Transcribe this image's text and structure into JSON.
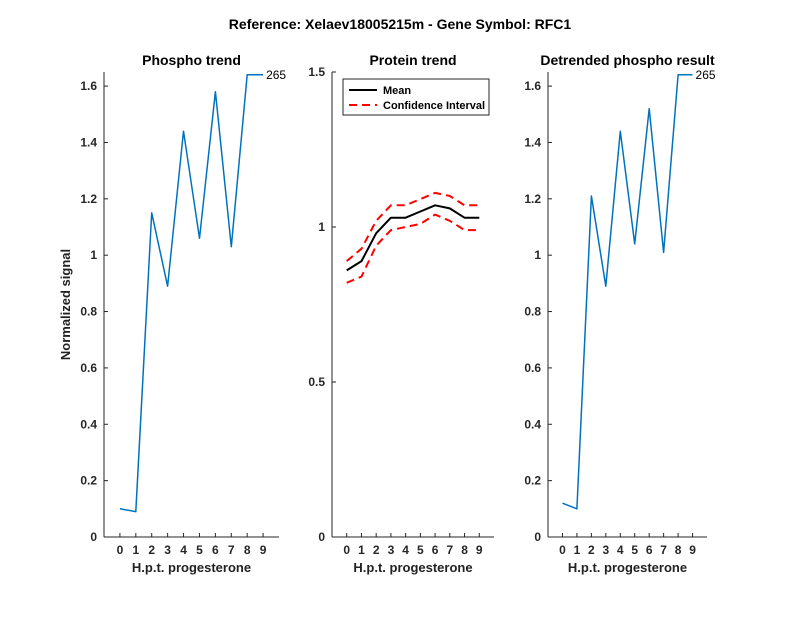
{
  "figure": {
    "suptitle": "Reference:  Xelaev18005215m - Gene Symbol:  RFC1"
  },
  "chart_data": [
    {
      "type": "line",
      "title": "Phospho trend",
      "xlabel": "H.p.t. progesterone",
      "ylabel": "Normalized signal",
      "xlim": [
        -1,
        10
      ],
      "ylim": [
        0,
        1.65
      ],
      "xticks": [
        0,
        1,
        2,
        3,
        4,
        5,
        6,
        7,
        8,
        9
      ],
      "yticks": [
        0,
        0.2,
        0.4,
        0.6,
        0.8,
        1,
        1.2,
        1.4,
        1.6
      ],
      "ytick_labels": [
        "0",
        "0.2",
        "0.4",
        "0.6",
        "0.8",
        "1",
        "1.2",
        "1.4",
        "1.6"
      ],
      "grid": false,
      "series": [
        {
          "color": "#0072BD",
          "x": [
            0,
            1,
            2,
            3,
            4,
            5,
            6,
            7,
            8,
            9
          ],
          "y": [
            0.1,
            0.09,
            1.15,
            0.89,
            1.44,
            1.06,
            1.58,
            1.03,
            1.64,
            1.64
          ]
        }
      ],
      "annotations": [
        {
          "text": "265",
          "x": 9,
          "y": 1.64
        }
      ]
    },
    {
      "type": "line",
      "title": "Protein trend",
      "xlabel": "H.p.t. progesterone",
      "ylabel": "",
      "xlim": [
        -1,
        10
      ],
      "ylim": [
        0,
        1.5
      ],
      "xticks": [
        0,
        1,
        2,
        3,
        4,
        5,
        6,
        7,
        8,
        9
      ],
      "yticks": [
        0,
        0.5,
        1,
        1.5
      ],
      "ytick_labels": [
        "0",
        "0.5",
        "1",
        "1.5"
      ],
      "grid": false,
      "legend": {
        "position": "top-left",
        "entries": [
          "Mean",
          "Confidence Interval"
        ]
      },
      "series": [
        {
          "name": "Mean",
          "color": "#000000",
          "style": "solid",
          "x": [
            0,
            1,
            2,
            3,
            4,
            5,
            6,
            7,
            8,
            9
          ],
          "y": [
            0.86,
            0.89,
            0.98,
            1.03,
            1.03,
            1.05,
            1.07,
            1.06,
            1.03,
            1.03
          ]
        },
        {
          "name": "Confidence Interval",
          "color": "#FF0000",
          "style": "dashed",
          "x": [
            0,
            1,
            2,
            3,
            4,
            5,
            6,
            7,
            8,
            9
          ],
          "y": [
            0.89,
            0.93,
            1.02,
            1.07,
            1.07,
            1.09,
            1.11,
            1.1,
            1.07,
            1.07
          ]
        },
        {
          "color": "#FF0000",
          "style": "dashed",
          "x": [
            0,
            1,
            2,
            3,
            4,
            5,
            6,
            7,
            8,
            9
          ],
          "y": [
            0.82,
            0.84,
            0.94,
            0.99,
            1.0,
            1.01,
            1.04,
            1.02,
            0.99,
            0.99
          ]
        }
      ]
    },
    {
      "type": "line",
      "title": "Detrended phospho result",
      "xlabel": "H.p.t. progesterone",
      "ylabel": "",
      "xlim": [
        -1,
        10
      ],
      "ylim": [
        0,
        1.65
      ],
      "xticks": [
        0,
        1,
        2,
        3,
        4,
        5,
        6,
        7,
        8,
        9
      ],
      "yticks": [
        0,
        0.2,
        0.4,
        0.6,
        0.8,
        1,
        1.2,
        1.4,
        1.6
      ],
      "ytick_labels": [
        "0",
        "0.2",
        "0.4",
        "0.6",
        "0.8",
        "1",
        "1.2",
        "1.4",
        "1.6"
      ],
      "grid": false,
      "series": [
        {
          "color": "#0072BD",
          "x": [
            0,
            1,
            2,
            3,
            4,
            5,
            6,
            7,
            8,
            9
          ],
          "y": [
            0.12,
            0.1,
            1.21,
            0.89,
            1.44,
            1.04,
            1.52,
            1.01,
            1.64,
            1.64
          ]
        }
      ],
      "annotations": [
        {
          "text": "265",
          "x": 9,
          "y": 1.64
        }
      ]
    }
  ]
}
